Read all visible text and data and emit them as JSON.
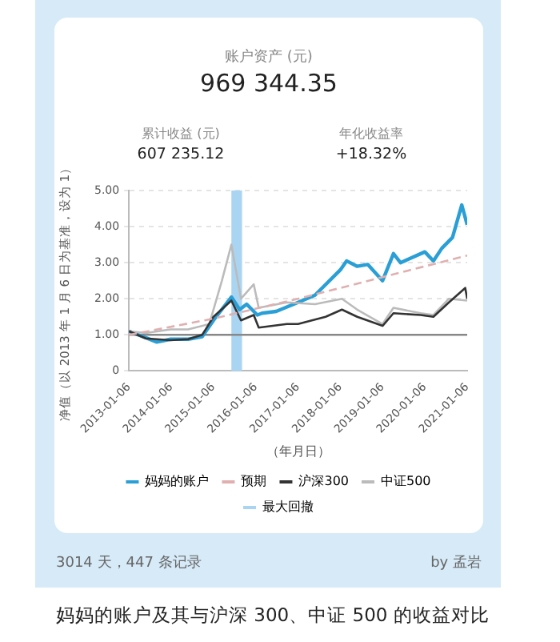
{
  "chart_data": {
    "type": "line",
    "title": "妈妈的账户及其与沪深 300、中证 500 的收益对比",
    "xlabel": "（年月日）",
    "ylabel": "净值（以 2013 年 1 月 6 日为基准，设为 1）",
    "annotations": [
      "账户资产 (元)",
      "969 344.35",
      "累计收益 (元)",
      "607 235.12",
      "年化收益率",
      "+18.32%",
      "3014 天，447 条记录",
      "by 孟岩"
    ],
    "xlim": [
      "2013-01-06",
      "2021-01-06"
    ],
    "xticks": [
      "2013-01-06",
      "2014-01-06",
      "2015-01-06",
      "2016-01-06",
      "2017-01-06",
      "2018-01-06",
      "2019-01-06",
      "2020-01-06",
      "2021-01-06"
    ],
    "ylim": [
      0,
      5
    ],
    "yticks": [
      {
        "value": 0,
        "label": "0"
      },
      {
        "value": 1,
        "label": "1.00"
      },
      {
        "value": 2,
        "label": "2.00"
      },
      {
        "value": 3,
        "label": "3.00"
      },
      {
        "value": 4,
        "label": "4.00"
      },
      {
        "value": 5,
        "label": "5.00"
      }
    ],
    "grid": "y",
    "legend": "bottom",
    "series": [
      {
        "name": "妈妈的账户",
        "color": "#2a9fd6",
        "x": [
          "2013-01-06",
          "2013-06-01",
          "2013-09-01",
          "2014-01-01",
          "2014-06-01",
          "2014-10-01",
          "2015-01-06",
          "2015-06-10",
          "2015-08-20",
          "2015-10-20",
          "2016-01-20",
          "2016-03-01",
          "2016-07-01",
          "2017-01-06",
          "2017-06-01",
          "2018-01-06",
          "2018-03-01",
          "2018-06-01",
          "2018-09-01",
          "2019-01-06",
          "2019-04-10",
          "2019-06-10",
          "2020-01-06",
          "2020-03-20",
          "2020-06-01",
          "2020-09-01",
          "2020-11-20",
          "2021-01-06"
        ],
        "values": [
          1.1,
          0.92,
          0.8,
          0.88,
          0.88,
          0.95,
          1.4,
          2.05,
          1.7,
          1.85,
          1.55,
          1.6,
          1.65,
          1.9,
          2.1,
          2.8,
          3.05,
          2.9,
          2.95,
          2.5,
          3.25,
          3.0,
          3.3,
          3.05,
          3.4,
          3.7,
          4.6,
          4.05
        ]
      },
      {
        "name": "预期",
        "color": "#e0b0b0",
        "line_style": "dashed",
        "x": [
          "2013-01-06",
          "2015-01-06",
          "2017-01-06",
          "2019-01-06",
          "2021-01-06"
        ],
        "values": [
          1.0,
          1.45,
          2.0,
          2.6,
          3.2
        ]
      },
      {
        "name": "沪深300",
        "color": "#333333",
        "x": [
          "2013-01-06",
          "2013-06-01",
          "2014-01-01",
          "2014-06-01",
          "2014-10-01",
          "2015-01-06",
          "2015-06-10",
          "2015-09-01",
          "2015-12-20",
          "2016-02-01",
          "2016-10-01",
          "2017-01-06",
          "2017-09-01",
          "2018-01-20",
          "2018-06-01",
          "2019-01-06",
          "2019-04-10",
          "2019-12-01",
          "2020-03-20",
          "2020-08-01",
          "2020-12-20",
          "2021-01-06"
        ],
        "values": [
          1.1,
          0.9,
          0.85,
          0.88,
          1.0,
          1.5,
          1.95,
          1.4,
          1.55,
          1.2,
          1.3,
          1.3,
          1.5,
          1.7,
          1.5,
          1.25,
          1.6,
          1.55,
          1.5,
          1.9,
          2.3,
          2.0
        ]
      },
      {
        "name": "中证500",
        "color": "#bbbbbb",
        "x": [
          "2013-01-06",
          "2013-06-01",
          "2014-01-01",
          "2014-06-01",
          "2014-12-01",
          "2015-03-20",
          "2015-06-10",
          "2015-09-01",
          "2015-12-20",
          "2016-02-01",
          "2016-10-01",
          "2017-06-01",
          "2018-01-20",
          "2018-06-01",
          "2019-01-06",
          "2019-04-10",
          "2019-12-01",
          "2020-03-20",
          "2020-08-01",
          "2021-01-06"
        ],
        "values": [
          1.1,
          1.05,
          1.15,
          1.15,
          1.3,
          2.5,
          3.5,
          2.0,
          2.4,
          1.75,
          1.9,
          1.85,
          2.0,
          1.7,
          1.3,
          1.75,
          1.6,
          1.55,
          2.0,
          1.95
        ]
      }
    ],
    "ref_lines": [
      {
        "axis": "y",
        "value": 1,
        "color": "#888888"
      }
    ],
    "bands": [
      {
        "axis": "x",
        "from": "2015-06-10",
        "to": "2015-09-10",
        "label": "最大回撤",
        "color": "#a9d5f2"
      }
    ]
  }
}
